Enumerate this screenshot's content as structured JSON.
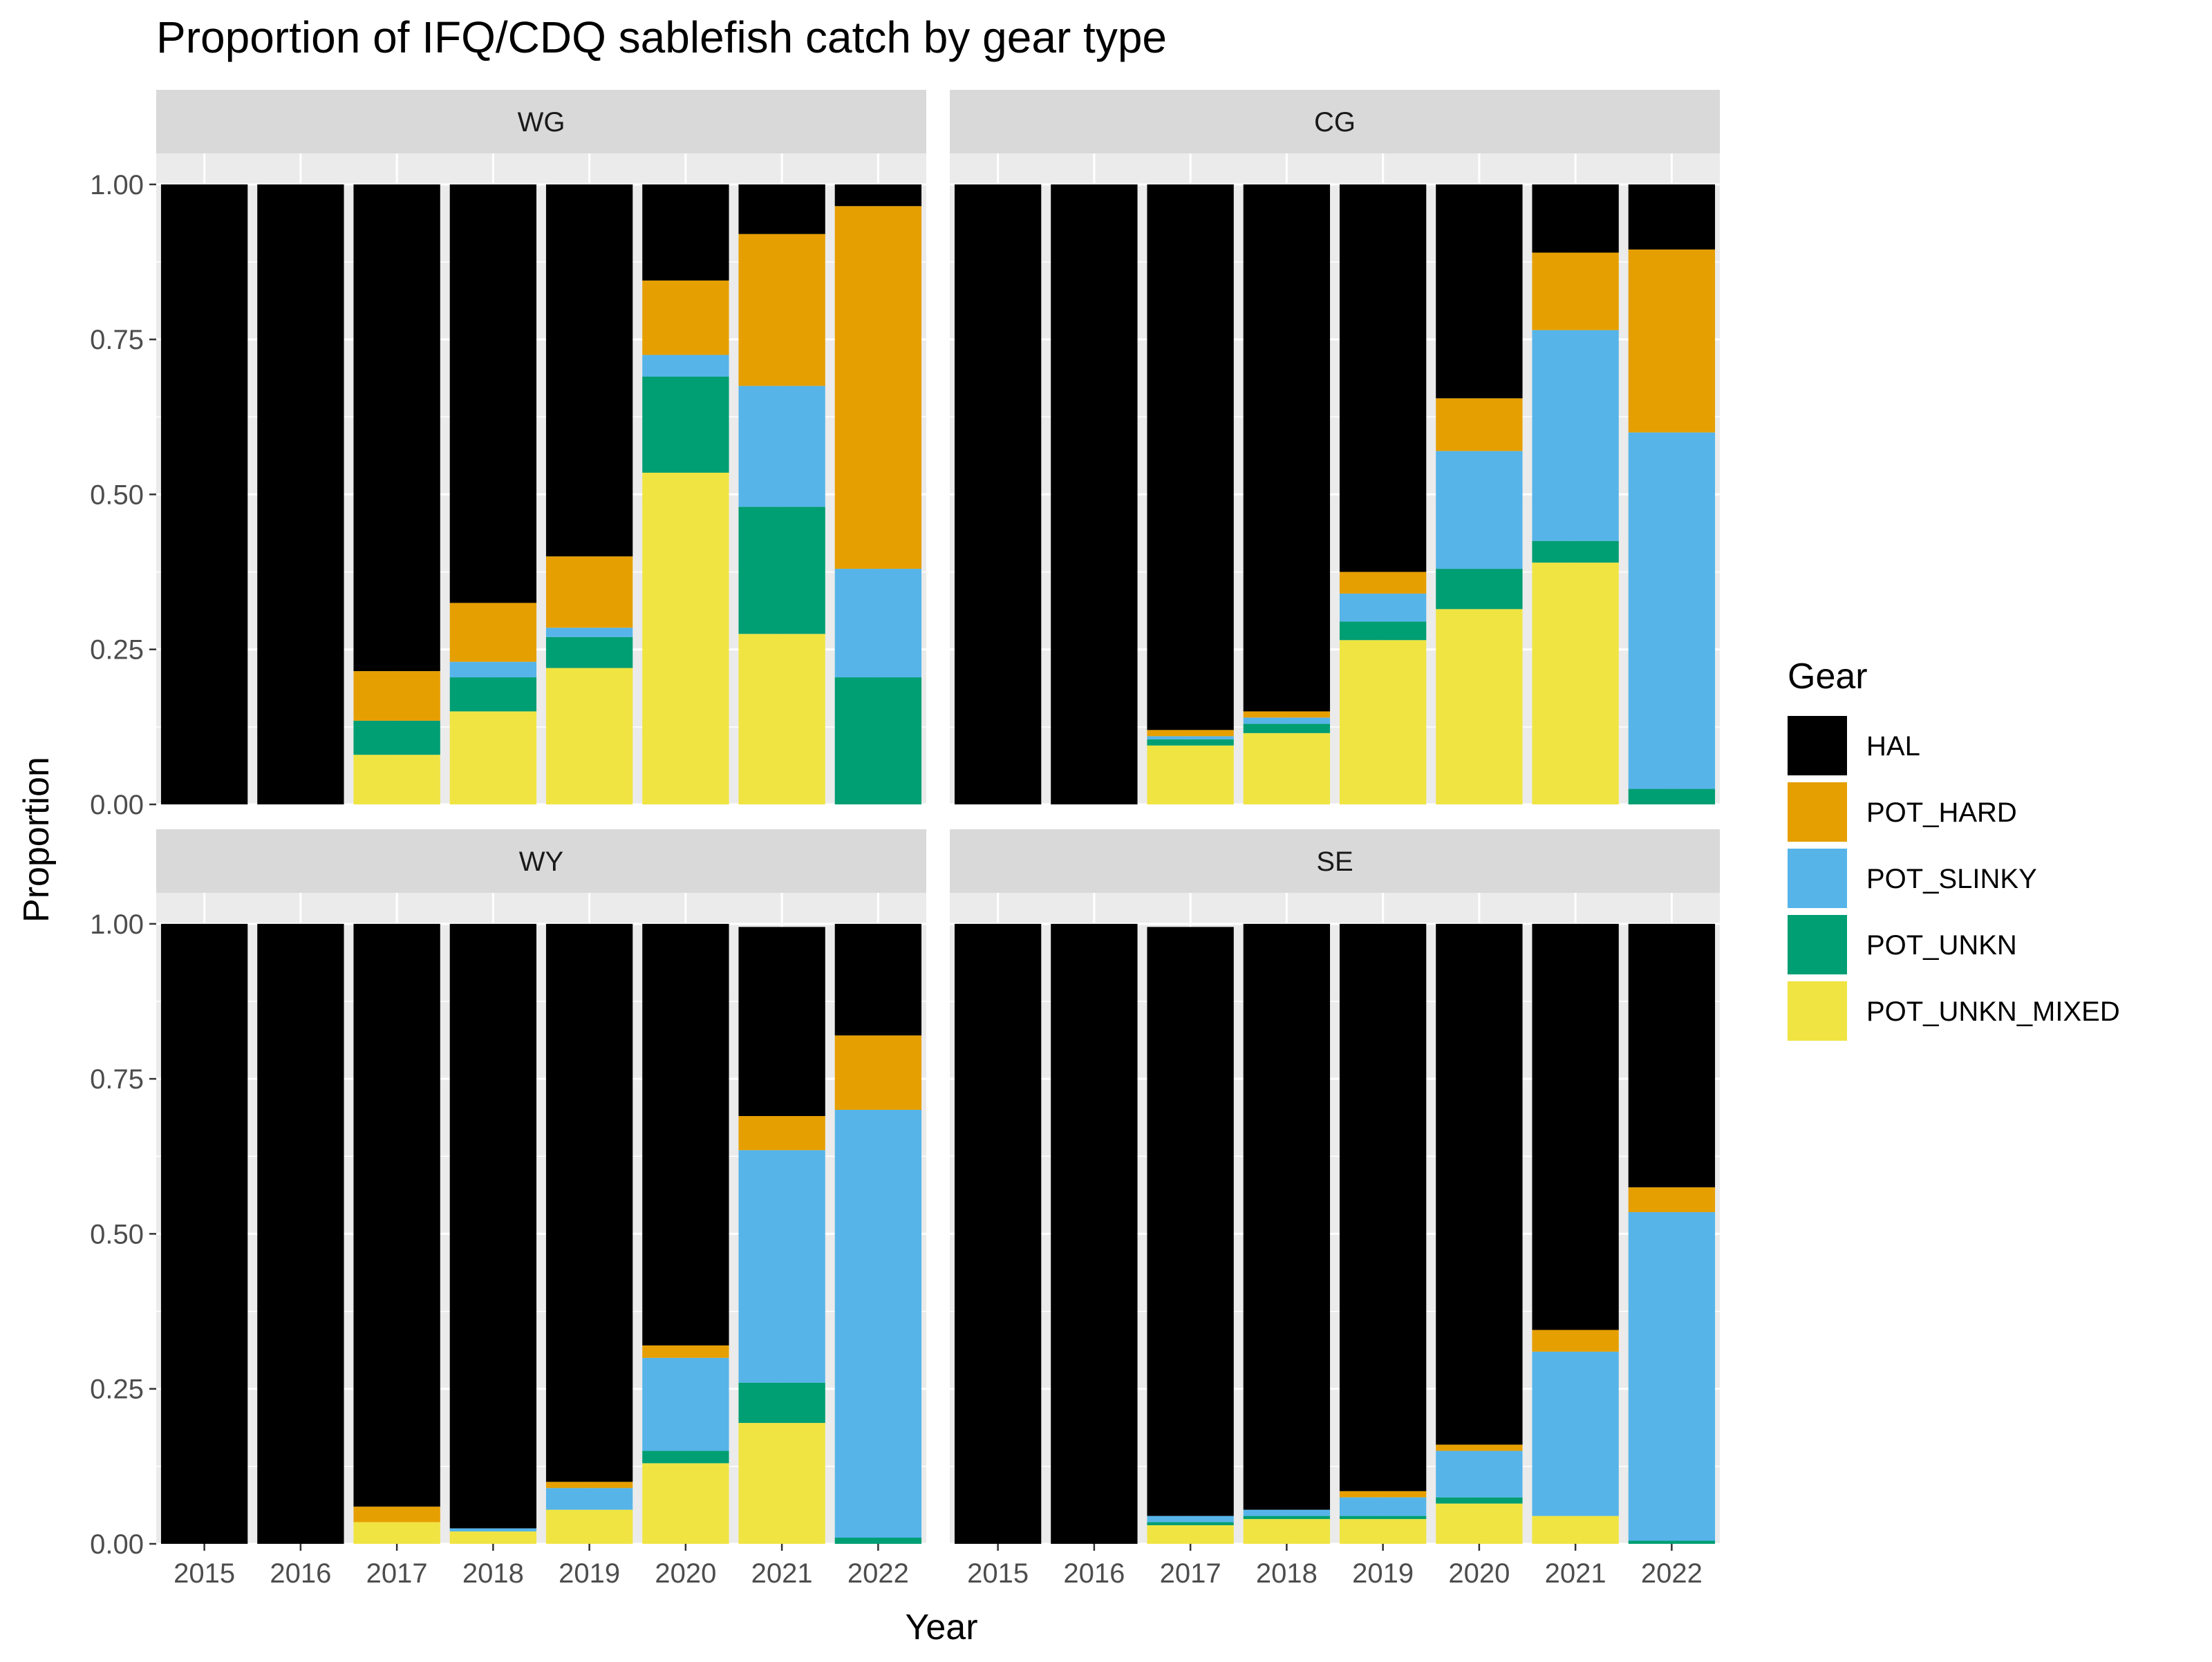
{
  "chart_data": {
    "type": "bar",
    "stacked": true,
    "faceted": true,
    "title": "Proportion of IFQ/CDQ sablefish catch by gear type",
    "xlabel": "Year",
    "ylabel": "Proportion",
    "ylim": [
      0,
      1.05
    ],
    "yticks": [
      "0.00",
      "0.25",
      "0.50",
      "0.75",
      "1.00"
    ],
    "ytick_values": [
      0,
      0.25,
      0.5,
      0.75,
      1.0
    ],
    "categories": [
      "2015",
      "2016",
      "2017",
      "2018",
      "2019",
      "2020",
      "2021",
      "2022"
    ],
    "legend": {
      "title": "Gear",
      "position": "right",
      "entries": [
        "HAL",
        "POT_HARD",
        "POT_SLINKY",
        "POT_UNKN",
        "POT_UNKN_MIXED"
      ]
    },
    "colors": {
      "HAL": "#000000",
      "POT_HARD": "#E69F00",
      "POT_SLINKY": "#56B4E9",
      "POT_UNKN": "#009E73",
      "POT_UNKN_MIXED": "#F0E442"
    },
    "stack_order_bottom_to_top": [
      "POT_UNKN_MIXED",
      "POT_UNKN",
      "POT_SLINKY",
      "POT_HARD",
      "HAL"
    ],
    "facets": [
      {
        "name": "WG",
        "series": [
          {
            "name": "HAL",
            "values": [
              1.0,
              1.0,
              0.785,
              0.675,
              0.6,
              0.155,
              0.08,
              0.035
            ]
          },
          {
            "name": "POT_HARD",
            "values": [
              0,
              0,
              0.08,
              0.095,
              0.115,
              0.12,
              0.245,
              0.585
            ]
          },
          {
            "name": "POT_SLINKY",
            "values": [
              0,
              0,
              0,
              0.025,
              0.015,
              0.035,
              0.195,
              0.175
            ]
          },
          {
            "name": "POT_UNKN",
            "values": [
              0,
              0,
              0.055,
              0.055,
              0.05,
              0.155,
              0.205,
              0.205
            ]
          },
          {
            "name": "POT_UNKN_MIXED",
            "values": [
              0,
              0,
              0.08,
              0.15,
              0.22,
              0.535,
              0.275,
              0
            ]
          }
        ]
      },
      {
        "name": "CG",
        "series": [
          {
            "name": "HAL",
            "values": [
              1.0,
              1.0,
              0.88,
              0.85,
              0.625,
              0.345,
              0.11,
              0.105
            ]
          },
          {
            "name": "POT_HARD",
            "values": [
              0,
              0,
              0.01,
              0.01,
              0.035,
              0.085,
              0.125,
              0.295
            ]
          },
          {
            "name": "POT_SLINKY",
            "values": [
              0,
              0,
              0.005,
              0.01,
              0.045,
              0.19,
              0.34,
              0.575
            ]
          },
          {
            "name": "POT_UNKN",
            "values": [
              0,
              0,
              0.01,
              0.015,
              0.03,
              0.065,
              0.035,
              0.025
            ]
          },
          {
            "name": "POT_UNKN_MIXED",
            "values": [
              0,
              0,
              0.095,
              0.115,
              0.265,
              0.315,
              0.39,
              0
            ]
          }
        ]
      },
      {
        "name": "WY",
        "series": [
          {
            "name": "HAL",
            "values": [
              1.0,
              1.0,
              0.94,
              0.975,
              0.9,
              0.68,
              0.305,
              0.18
            ]
          },
          {
            "name": "POT_HARD",
            "values": [
              0,
              0,
              0.025,
              0.0,
              0.01,
              0.02,
              0.055,
              0.12
            ]
          },
          {
            "name": "POT_SLINKY",
            "values": [
              0,
              0,
              0,
              0.005,
              0.035,
              0.15,
              0.375,
              0.69
            ]
          },
          {
            "name": "POT_UNKN",
            "values": [
              0,
              0,
              0,
              0.0,
              0.0,
              0.02,
              0.065,
              0.01
            ]
          },
          {
            "name": "POT_UNKN_MIXED",
            "values": [
              0,
              0,
              0.035,
              0.02,
              0.055,
              0.13,
              0.195,
              0
            ]
          }
        ]
      },
      {
        "name": "SE",
        "series": [
          {
            "name": "HAL",
            "values": [
              1.0,
              1.0,
              0.95,
              0.945,
              0.915,
              0.84,
              0.655,
              0.425
            ]
          },
          {
            "name": "POT_HARD",
            "values": [
              0,
              0,
              0.0,
              0.0,
              0.01,
              0.01,
              0.035,
              0.04
            ]
          },
          {
            "name": "POT_SLINKY",
            "values": [
              0,
              0,
              0.01,
              0.01,
              0.03,
              0.075,
              0.265,
              0.53
            ]
          },
          {
            "name": "POT_UNKN",
            "values": [
              0,
              0,
              0.005,
              0.005,
              0.005,
              0.01,
              0.0,
              0.005
            ]
          },
          {
            "name": "POT_UNKN_MIXED",
            "values": [
              0,
              0,
              0.03,
              0.04,
              0.04,
              0.065,
              0.045,
              0
            ]
          }
        ]
      }
    ]
  }
}
